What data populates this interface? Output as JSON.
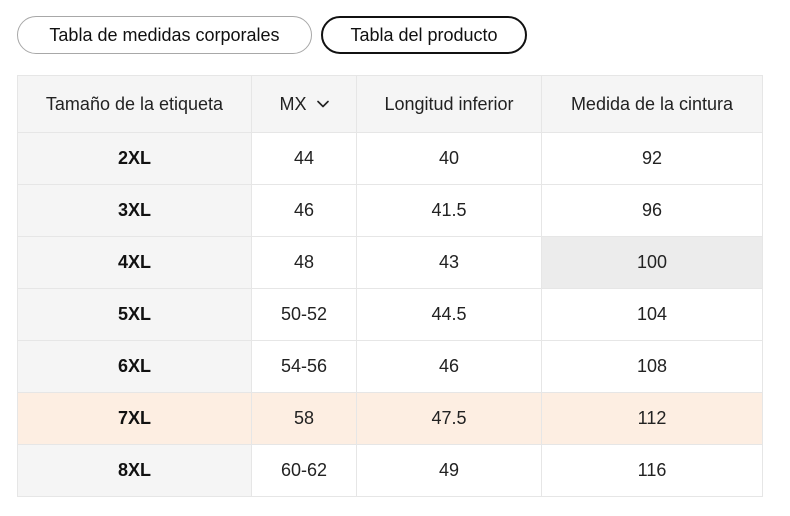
{
  "tabs": [
    {
      "label": "Tabla de medidas corporales",
      "selected": false
    },
    {
      "label": "Tabla del producto",
      "selected": true
    }
  ],
  "table": {
    "headers": {
      "tag_size": "Tamaño de la etiqueta",
      "unit": "MX",
      "length": "Longitud inferior",
      "waist": "Medida de la cintura"
    },
    "rows": [
      {
        "size": "2XL",
        "mx": "44",
        "length": "40",
        "waist": "92"
      },
      {
        "size": "3XL",
        "mx": "46",
        "length": "41.5",
        "waist": "96"
      },
      {
        "size": "4XL",
        "mx": "48",
        "length": "43",
        "waist": "100"
      },
      {
        "size": "5XL",
        "mx": "50-52",
        "length": "44.5",
        "waist": "104"
      },
      {
        "size": "6XL",
        "mx": "54-56",
        "length": "46",
        "waist": "108"
      },
      {
        "size": "7XL",
        "mx": "58",
        "length": "47.5",
        "waist": "112"
      },
      {
        "size": "8XL",
        "mx": "60-62",
        "length": "49",
        "waist": "116"
      }
    ],
    "highlighted_row": "7XL"
  },
  "colors": {
    "header_bg": "#f5f5f5",
    "highlight_row_bg": "#fdeee2",
    "border": "#e6e6e6",
    "active_tab_border": "#111111"
  }
}
